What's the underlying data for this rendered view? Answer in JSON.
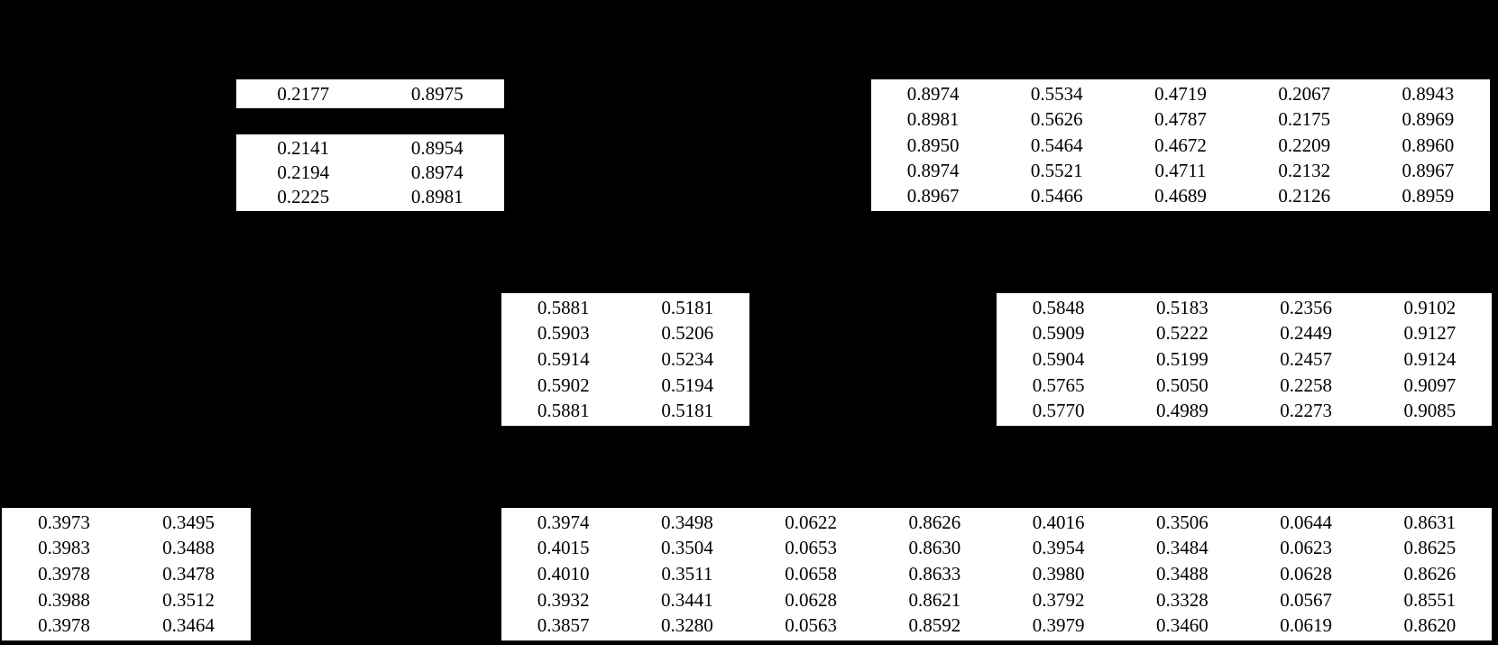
{
  "colors": {
    "background": "#000000",
    "cell_background": "#ffffff",
    "text": "#000000"
  },
  "table_fragments": {
    "top_left_single": {
      "rows": [
        [
          "0.2177",
          "0.8975"
        ]
      ]
    },
    "top_left_triple": {
      "rows": [
        [
          "0.2141",
          "0.8954"
        ],
        [
          "0.2194",
          "0.8974"
        ],
        [
          "0.2225",
          "0.8981"
        ]
      ]
    },
    "top_right": {
      "rows": [
        [
          "0.8974",
          "0.5534",
          "0.4719",
          "0.2067",
          "0.8943"
        ],
        [
          "0.8981",
          "0.5626",
          "0.4787",
          "0.2175",
          "0.8969"
        ],
        [
          "0.8950",
          "0.5464",
          "0.4672",
          "0.2209",
          "0.8960"
        ],
        [
          "0.8974",
          "0.5521",
          "0.4711",
          "0.2132",
          "0.8967"
        ],
        [
          "0.8967",
          "0.5466",
          "0.4689",
          "0.2126",
          "0.8959"
        ]
      ]
    },
    "mid_center": {
      "rows": [
        [
          "0.5881",
          "0.5181"
        ],
        [
          "0.5903",
          "0.5206"
        ],
        [
          "0.5914",
          "0.5234"
        ],
        [
          "0.5902",
          "0.5194"
        ],
        [
          "0.5881",
          "0.5181"
        ]
      ]
    },
    "mid_right": {
      "rows": [
        [
          "0.5848",
          "0.5183",
          "0.2356",
          "0.9102"
        ],
        [
          "0.5909",
          "0.5222",
          "0.2449",
          "0.9127"
        ],
        [
          "0.5904",
          "0.5199",
          "0.2457",
          "0.9124"
        ],
        [
          "0.5765",
          "0.5050",
          "0.2258",
          "0.9097"
        ],
        [
          "0.5770",
          "0.4989",
          "0.2273",
          "0.9085"
        ]
      ]
    },
    "bottom_left": {
      "rows": [
        [
          "0.3973",
          "0.3495"
        ],
        [
          "0.3983",
          "0.3488"
        ],
        [
          "0.3978",
          "0.3478"
        ],
        [
          "0.3988",
          "0.3512"
        ],
        [
          "0.3978",
          "0.3464"
        ]
      ]
    },
    "bottom_center": {
      "rows": [
        [
          "0.3974",
          "0.3498",
          "0.0622",
          "0.8626",
          "0.4016",
          "0.3506",
          "0.0644",
          "0.8631"
        ],
        [
          "0.4015",
          "0.3504",
          "0.0653",
          "0.8630",
          "0.3954",
          "0.3484",
          "0.0623",
          "0.8625"
        ],
        [
          "0.4010",
          "0.3511",
          "0.0658",
          "0.8633",
          "0.3980",
          "0.3488",
          "0.0628",
          "0.8626"
        ],
        [
          "0.3932",
          "0.3441",
          "0.0628",
          "0.8621",
          "0.3792",
          "0.3328",
          "0.0567",
          "0.8551"
        ],
        [
          "0.3857",
          "0.3280",
          "0.0563",
          "0.8592",
          "0.3979",
          "0.3460",
          "0.0619",
          "0.8620"
        ]
      ]
    }
  }
}
